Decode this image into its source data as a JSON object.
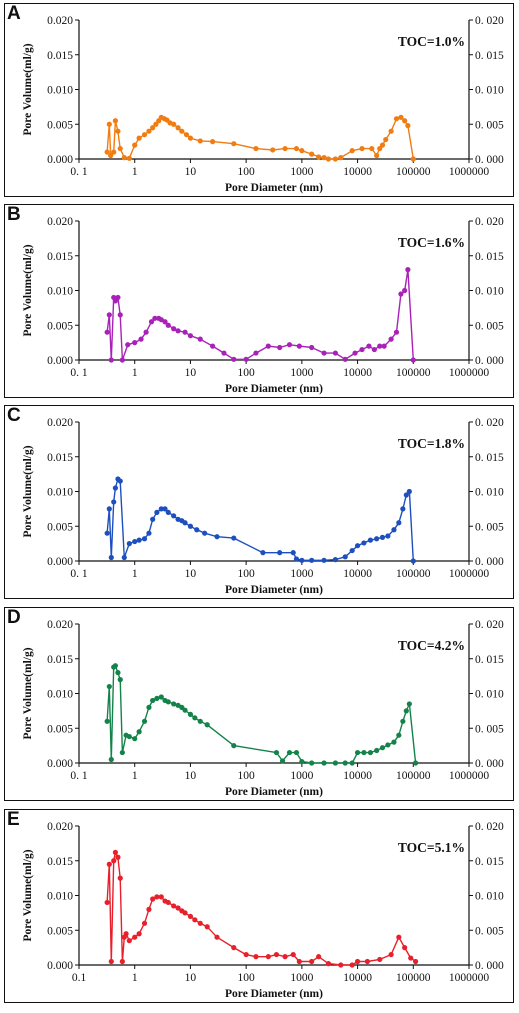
{
  "chart_data": [
    {
      "panel": "A",
      "type": "line",
      "annotation": "TOC=1.0%",
      "color": "#f07d13",
      "xlabel": "Pore Diameter (nm)",
      "ylabel": "Pore Volume(ml/g)",
      "xscale": "log",
      "xlim": [
        0.1,
        1000000
      ],
      "ylim": [
        0,
        0.02
      ],
      "xticks": [
        "0. 1",
        "1",
        "10",
        "100",
        "1000",
        "10000",
        "100000",
        "1000000"
      ],
      "yticks": [
        "0.000",
        "0.005",
        "0.010",
        "0.015",
        "0.020"
      ],
      "yticks_right": [
        "0. 000",
        "0. 005",
        "0. 010",
        "0. 015",
        "0. 020"
      ],
      "x": [
        0.32,
        0.35,
        0.37,
        0.42,
        0.45,
        0.5,
        0.55,
        0.65,
        0.8,
        1.0,
        1.2,
        1.5,
        1.8,
        2.1,
        2.4,
        2.7,
        3.0,
        3.4,
        3.8,
        4.3,
        5,
        6,
        7,
        8.5,
        10,
        15,
        25,
        60,
        150,
        300,
        500,
        800,
        1000,
        1500,
        2000,
        2500,
        3000,
        4000,
        5000,
        8000,
        12000,
        18000,
        22000,
        25000,
        28000,
        32000,
        40000,
        50000,
        60000,
        70000,
        80000,
        100000
      ],
      "y": [
        0.001,
        0.005,
        0.0005,
        0.001,
        0.0055,
        0.004,
        0.0015,
        0.0002,
        0.0001,
        0.002,
        0.003,
        0.0035,
        0.004,
        0.0045,
        0.005,
        0.0055,
        0.006,
        0.0058,
        0.0056,
        0.0052,
        0.005,
        0.0045,
        0.004,
        0.0035,
        0.003,
        0.0026,
        0.0025,
        0.0022,
        0.0015,
        0.0013,
        0.0015,
        0.0015,
        0.0012,
        0.0007,
        0.0003,
        0.0002,
        0.0,
        0.0,
        0.0002,
        0.0012,
        0.0015,
        0.0015,
        0.0005,
        0.0015,
        0.002,
        0.0028,
        0.004,
        0.0058,
        0.006,
        0.0055,
        0.0048,
        0.0
      ]
    },
    {
      "panel": "B",
      "type": "line",
      "annotation": "TOC=1.6%",
      "color": "#a822b8",
      "xlabel": "Pore Diameter (nm)",
      "ylabel": "Pore Volume(ml/g)",
      "xscale": "log",
      "xlim": [
        0.1,
        1000000
      ],
      "ylim": [
        0,
        0.02
      ],
      "xticks": [
        "0. 1",
        "1",
        "10",
        "100",
        "1000",
        "10000",
        "100000",
        "1000000"
      ],
      "yticks": [
        "0.000",
        "0.005",
        "0.010",
        "0.015",
        "0.020"
      ],
      "yticks_right": [
        "0. 000",
        "0. 005",
        "0. 010",
        "0. 015",
        "0. 020"
      ],
      "x": [
        0.32,
        0.35,
        0.38,
        0.42,
        0.45,
        0.5,
        0.55,
        0.6,
        0.75,
        1.0,
        1.3,
        1.6,
        2.0,
        2.3,
        2.7,
        3.0,
        3.5,
        4,
        5,
        6,
        8,
        10,
        15,
        25,
        40,
        60,
        100,
        150,
        250,
        400,
        600,
        900,
        1500,
        2500,
        4000,
        6000,
        9000,
        12000,
        16000,
        20000,
        25000,
        30000,
        40000,
        50000,
        60000,
        70000,
        80000,
        100000
      ],
      "y": [
        0.004,
        0.0065,
        0.0,
        0.009,
        0.0085,
        0.009,
        0.0065,
        0.0,
        0.0022,
        0.0025,
        0.003,
        0.004,
        0.0055,
        0.006,
        0.006,
        0.0058,
        0.0055,
        0.005,
        0.0045,
        0.0042,
        0.004,
        0.0035,
        0.003,
        0.002,
        0.001,
        0.0001,
        0.0001,
        0.001,
        0.002,
        0.0018,
        0.0022,
        0.002,
        0.0018,
        0.001,
        0.001,
        0.0001,
        0.001,
        0.0015,
        0.002,
        0.0015,
        0.002,
        0.002,
        0.003,
        0.004,
        0.0095,
        0.01,
        0.013,
        0.0
      ]
    },
    {
      "panel": "C",
      "type": "line",
      "annotation": "TOC=1.8%",
      "color": "#1d4fbe",
      "xlabel": "Pore Diameter (nm)",
      "ylabel": "Pore Volume(ml/g)",
      "xscale": "log",
      "xlim": [
        0.1,
        1000000
      ],
      "ylim": [
        0,
        0.02
      ],
      "xticks": [
        "0. 1",
        "1",
        "10",
        "100",
        "1000",
        "10000",
        "100000",
        "1000000"
      ],
      "yticks": [
        "0.000",
        "0.005",
        "0.010",
        "0.015",
        "0.020"
      ],
      "yticks_right": [
        "0. 000",
        "0. 005",
        "0. 010",
        "0. 015",
        "0. 020"
      ],
      "x": [
        0.32,
        0.35,
        0.38,
        0.42,
        0.45,
        0.5,
        0.55,
        0.65,
        0.8,
        1.0,
        1.2,
        1.5,
        1.8,
        2.1,
        2.5,
        3.0,
        3.5,
        4,
        5,
        6,
        7,
        8,
        10,
        13,
        18,
        30,
        60,
        200,
        400,
        700,
        800,
        1000,
        1500,
        2500,
        4000,
        6000,
        8000,
        10000,
        13000,
        17000,
        22000,
        28000,
        35000,
        45000,
        55000,
        65000,
        75000,
        85000,
        100000
      ],
      "y": [
        0.004,
        0.0075,
        0.0005,
        0.0085,
        0.0105,
        0.0118,
        0.0115,
        0.0005,
        0.0025,
        0.0028,
        0.003,
        0.0032,
        0.004,
        0.006,
        0.007,
        0.0075,
        0.0075,
        0.007,
        0.0065,
        0.006,
        0.0058,
        0.0055,
        0.005,
        0.0045,
        0.004,
        0.0035,
        0.0033,
        0.0012,
        0.0012,
        0.0012,
        0.0003,
        0.0001,
        0.0001,
        0.0001,
        0.0002,
        0.0006,
        0.0015,
        0.0022,
        0.0026,
        0.003,
        0.0032,
        0.0034,
        0.0036,
        0.0045,
        0.0055,
        0.0075,
        0.0095,
        0.01,
        0.0
      ]
    },
    {
      "panel": "D",
      "type": "line",
      "annotation": "TOC=4.2%",
      "color": "#14834a",
      "xlabel": "Pore Diameter (nm)",
      "ylabel": "Pore Volume(ml/g)",
      "xscale": "log",
      "xlim": [
        0.1,
        1000000
      ],
      "ylim": [
        0,
        0.02
      ],
      "xticks": [
        "0. 1",
        "1",
        "10",
        "100",
        "1000",
        "10000",
        "100000",
        "1000000"
      ],
      "yticks": [
        "0.000",
        "0.005",
        "0.010",
        "0.015",
        "0.020"
      ],
      "yticks_right": [
        "0. 000",
        "0. 005",
        "0. 010",
        "0. 015",
        "0. 020"
      ],
      "x": [
        0.32,
        0.35,
        0.38,
        0.42,
        0.45,
        0.5,
        0.55,
        0.6,
        0.7,
        0.8,
        1.0,
        1.2,
        1.5,
        1.8,
        2.1,
        2.5,
        3.0,
        3.5,
        4,
        5,
        6,
        7,
        8,
        10,
        12,
        15,
        20,
        60,
        350,
        450,
        600,
        800,
        1000,
        1500,
        2500,
        4000,
        6000,
        8000,
        10000,
        13000,
        17000,
        22000,
        28000,
        35000,
        45000,
        55000,
        65000,
        75000,
        85000,
        110000
      ],
      "y": [
        0.006,
        0.011,
        0.0005,
        0.0138,
        0.014,
        0.013,
        0.012,
        0.0015,
        0.004,
        0.0038,
        0.0035,
        0.0045,
        0.006,
        0.008,
        0.009,
        0.0093,
        0.0095,
        0.009,
        0.0088,
        0.0085,
        0.0083,
        0.008,
        0.0076,
        0.007,
        0.0065,
        0.006,
        0.0055,
        0.0025,
        0.0015,
        0.0003,
        0.0015,
        0.0015,
        0.0002,
        0.0,
        0.0,
        0.0,
        0.0,
        0.0,
        0.0015,
        0.0015,
        0.0015,
        0.0018,
        0.0022,
        0.0026,
        0.003,
        0.004,
        0.006,
        0.0075,
        0.0085,
        0.0
      ]
    },
    {
      "panel": "E",
      "type": "line",
      "annotation": "TOC=5.1%",
      "color": "#e8202b",
      "xlabel": "Pore Diameter (nm)",
      "ylabel": "Pore Volume(ml/g)",
      "xscale": "log",
      "xlim": [
        0.1,
        1000000
      ],
      "ylim": [
        0,
        0.02
      ],
      "xticks": [
        "0.1",
        "1",
        "10",
        "100",
        "1000",
        "10000",
        "100000",
        "1000000"
      ],
      "yticks": [
        "0.000",
        "0.005",
        "0.010",
        "0.015",
        "0.020"
      ],
      "yticks_right": [
        "0. 000",
        "0. 005",
        "0. 010",
        "0. 015",
        "0. 020"
      ],
      "x": [
        0.32,
        0.35,
        0.38,
        0.42,
        0.45,
        0.5,
        0.55,
        0.6,
        0.65,
        0.7,
        0.8,
        1.0,
        1.2,
        1.5,
        1.8,
        2.1,
        2.5,
        3.0,
        3.5,
        4,
        5,
        6,
        7,
        8,
        10,
        12,
        15,
        20,
        30,
        60,
        100,
        150,
        250,
        350,
        500,
        700,
        900,
        1500,
        2000,
        3000,
        5000,
        8000,
        10000,
        15000,
        25000,
        40000,
        55000,
        70000,
        90000,
        110000
      ],
      "y": [
        0.009,
        0.0145,
        0.0005,
        0.015,
        0.0162,
        0.0155,
        0.0125,
        0.0005,
        0.004,
        0.0045,
        0.0035,
        0.004,
        0.0045,
        0.006,
        0.008,
        0.0095,
        0.0098,
        0.0098,
        0.0092,
        0.009,
        0.0085,
        0.0082,
        0.0078,
        0.0075,
        0.007,
        0.0065,
        0.006,
        0.0055,
        0.004,
        0.0025,
        0.0015,
        0.0012,
        0.0012,
        0.0015,
        0.0012,
        0.0015,
        0.0005,
        0.0005,
        0.0012,
        0.0002,
        0.0,
        0.0,
        0.0005,
        0.0005,
        0.0008,
        0.0015,
        0.004,
        0.0025,
        0.001,
        0.0005
      ]
    }
  ]
}
